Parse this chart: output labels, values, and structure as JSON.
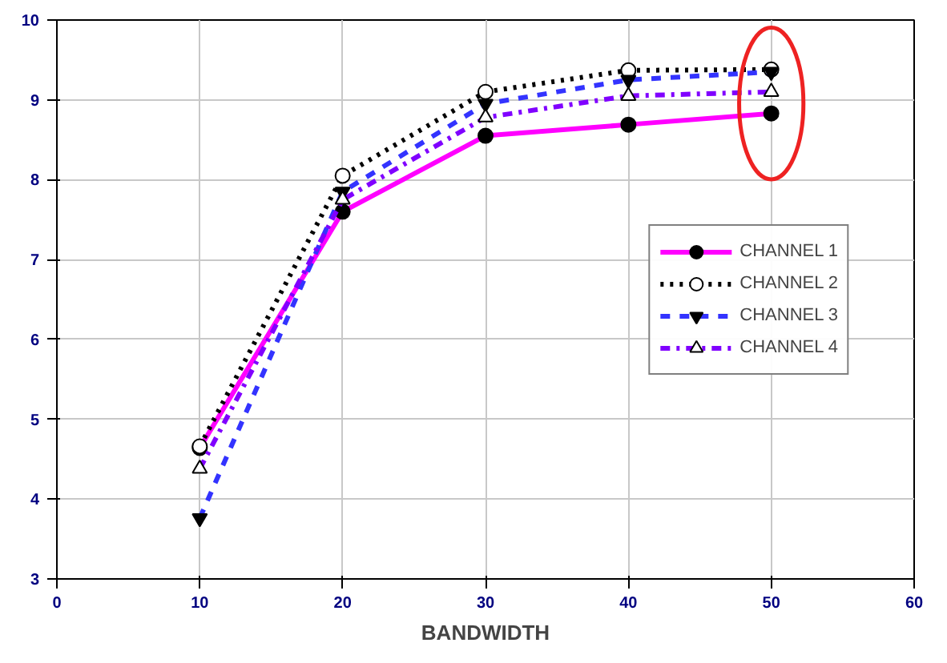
{
  "chart_data": {
    "type": "line",
    "xlabel": "BANDWIDTH",
    "x": [
      10,
      20,
      30,
      40,
      50
    ],
    "series": [
      {
        "name": "CHANNEL 1",
        "color": "#ff00ff",
        "values": [
          4.64,
          7.6,
          8.55,
          8.69,
          8.83
        ],
        "marker": "circle",
        "line_style": "solid"
      },
      {
        "name": "CHANNEL 2",
        "color": "#000000",
        "values": [
          4.66,
          8.05,
          9.1,
          9.37,
          9.38
        ],
        "marker": "circle_open",
        "line_style": "dotted"
      },
      {
        "name": "CHANNEL 3",
        "color": "#3333ff",
        "values": [
          3.76,
          7.85,
          8.95,
          9.25,
          9.35
        ],
        "marker": "triangle",
        "line_style": "dashed"
      },
      {
        "name": "CHANNEL 4",
        "color": "#8000ff",
        "values": [
          4.38,
          7.75,
          8.78,
          9.05,
          9.1
        ],
        "marker": "triangle_open",
        "line_style": "dashdot"
      }
    ],
    "xlim": [
      0,
      60
    ],
    "xticks": [
      0,
      10,
      20,
      30,
      40,
      50,
      60
    ],
    "ylim": [
      3,
      10
    ],
    "yticks": [
      3,
      4,
      5,
      6,
      7,
      8,
      9,
      10
    ],
    "grid": true,
    "legend": "right"
  }
}
